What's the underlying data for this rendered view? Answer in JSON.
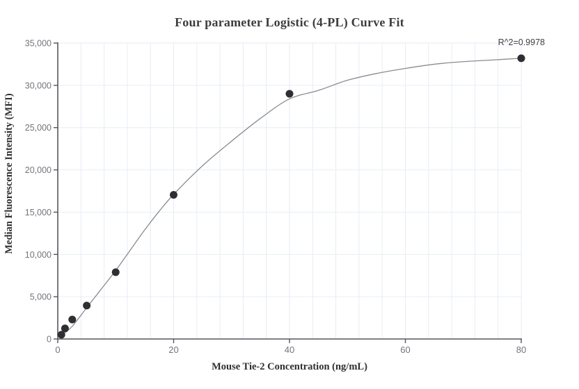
{
  "chart_data": {
    "type": "scatter",
    "title": "Four parameter Logistic (4-PL) Curve Fit",
    "xlabel": "Mouse Tie-2 Concentration (ng/mL)",
    "ylabel": "Median Fluorescence Intensity (MFI)",
    "annotation": "R^2=0.9978",
    "r_squared": 0.9978,
    "xlim": [
      0,
      80
    ],
    "ylim": [
      0,
      35000
    ],
    "x_major_ticks": [
      0,
      20,
      40,
      60,
      80
    ],
    "x_minor_grid_step": 4,
    "y_ticks": [
      0,
      5000,
      10000,
      15000,
      20000,
      25000,
      30000,
      35000
    ],
    "grid": true,
    "legend": "none",
    "points": {
      "x": [
        0.625,
        1.25,
        2.5,
        5,
        10,
        20,
        40,
        80
      ],
      "y": [
        500,
        1250,
        2300,
        3950,
        7900,
        17050,
        29000,
        33200
      ]
    },
    "fit_curve": {
      "model": "4PL",
      "samples": {
        "x": [
          0,
          1.25,
          2.5,
          5,
          7.5,
          10,
          12.5,
          15,
          17.5,
          20,
          25,
          30,
          35,
          40,
          45,
          50,
          55,
          60,
          65,
          70,
          75,
          80
        ],
        "y": [
          200,
          750,
          1500,
          3700,
          5900,
          8100,
          10500,
          12900,
          15100,
          17100,
          20500,
          23400,
          26100,
          28400,
          29400,
          30600,
          31400,
          32000,
          32500,
          32800,
          33000,
          33200
        ]
      }
    },
    "colors": {
      "background": "#ffffff",
      "grid": "#e6edf7",
      "axis": "#55555e",
      "tick_label": "#74747c",
      "title_text": "#3d3d3d",
      "axis_title_text": "#2f2f2f",
      "annotation_text": "#3f3f46",
      "point": "#2f2f33",
      "curve": "#8b8b90"
    }
  }
}
